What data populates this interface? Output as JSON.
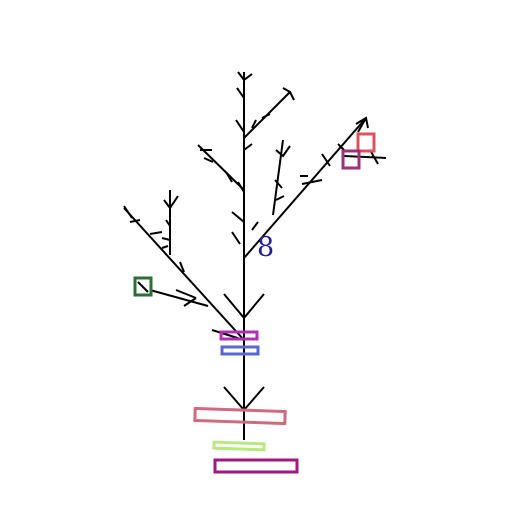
{
  "canvas": {
    "background": "#ffffff"
  },
  "plant": {
    "stroke_color": "#000000"
  },
  "annotation": {
    "text": "8",
    "color": "#1f1fa0"
  },
  "shapes": [
    {
      "name": "square-red",
      "color": "#e0505f"
    },
    {
      "name": "square-purple",
      "color": "#a0307a"
    },
    {
      "name": "square-green",
      "color": "#2f6e3a"
    },
    {
      "name": "rect-magenta",
      "color": "#b030b8"
    },
    {
      "name": "rect-blue",
      "color": "#5868d0"
    },
    {
      "name": "rect-pink",
      "color": "#d06a80"
    },
    {
      "name": "rect-lime",
      "color": "#b8e880"
    },
    {
      "name": "rect-purple",
      "color": "#a01880"
    }
  ]
}
